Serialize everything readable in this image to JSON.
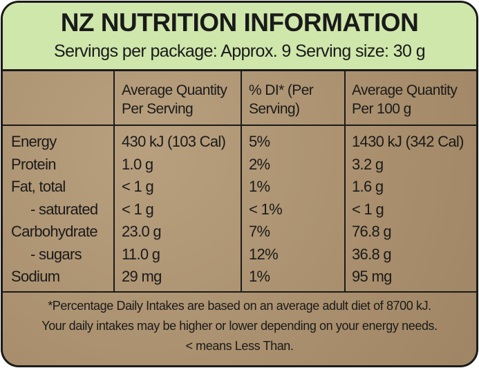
{
  "header": {
    "title": "NZ NUTRITION INFORMATION",
    "servings": "Servings per package: Approx. 9  Serving size: 30 g"
  },
  "table": {
    "columns": [
      [
        "Average Quantity",
        "Per Serving"
      ],
      [
        "% DI* (Per",
        "Serving)"
      ],
      [
        "Average Quantity",
        "Per 100 g"
      ]
    ],
    "rows": [
      [
        "Energy",
        "430 kJ (103 Cal)",
        "5%",
        "1430 kJ (342 Cal)"
      ],
      [
        "Protein",
        "1.0 g",
        "2%",
        "3.2 g"
      ],
      [
        "Fat, total",
        "< 1 g",
        "1%",
        "1.6 g"
      ],
      [
        "  - saturated",
        "< 1 g",
        "< 1%",
        "< 1 g"
      ],
      [
        "Carbohydrate",
        "23.0 g",
        "7%",
        "76.8 g"
      ],
      [
        "  - sugars",
        "11.0 g",
        "12%",
        "36.8 g"
      ],
      [
        "Sodium",
        "29 mg",
        "1%",
        "95 mg"
      ]
    ]
  },
  "footnote": [
    "*Percentage Daily Intakes are based on an average adult diet of 8700 kJ.",
    "Your daily intakes may be higher or lower depending on your energy needs.",
    "< means Less Than."
  ]
}
